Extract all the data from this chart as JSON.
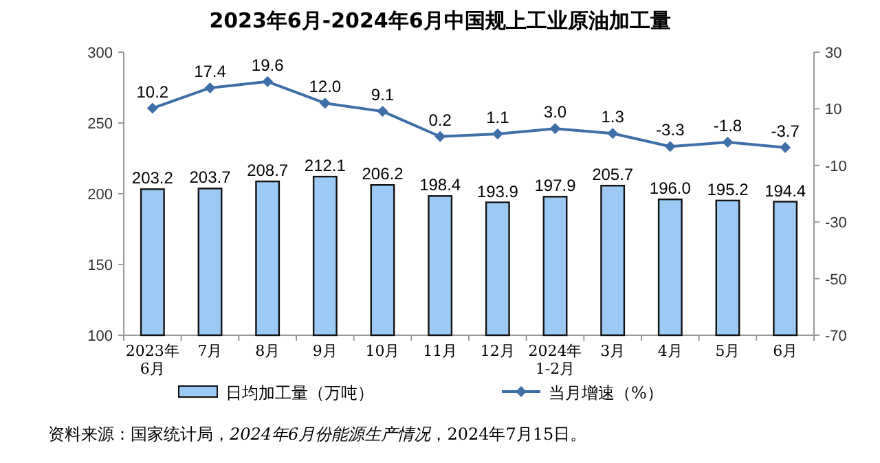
{
  "chart_data": {
    "type": "bar",
    "title": "2023年6月-2024年6月中国规上工业原油加工量",
    "categories": [
      "2023年\n6月",
      "7月",
      "8月",
      "9月",
      "10月",
      "11月",
      "12月",
      "2024年\n1-2月",
      "3月",
      "4月",
      "5月",
      "6月"
    ],
    "series": [
      {
        "name": "日均加工量（万吨）",
        "color": "#9ccaf5",
        "values": [
          203.2,
          203.7,
          208.7,
          212.1,
          206.2,
          198.4,
          193.9,
          197.9,
          205.7,
          196.0,
          195.2,
          194.4
        ],
        "value_labels": [
          "203.2",
          "203.7",
          "208.7",
          "212.1",
          "206.2",
          "198.4",
          "193.9",
          "197.9",
          "205.7",
          "196.0",
          "195.2",
          "194.4"
        ]
      },
      {
        "name": "当月增速（%）",
        "type": "line",
        "axis": "y2",
        "color": "#3e6fa8",
        "marker": "diamond",
        "values": [
          10.2,
          17.4,
          19.6,
          12.0,
          9.1,
          0.2,
          1.1,
          3.0,
          1.3,
          -3.3,
          -1.8,
          -3.7
        ],
        "value_labels": [
          "10.2",
          "17.4",
          "19.6",
          "12.0",
          "9.1",
          "0.2",
          "1.1",
          "3.0",
          "1.3",
          "-3.3",
          "-1.8",
          "-3.7"
        ]
      }
    ],
    "ylim": [
      100,
      300
    ],
    "yticks": [
      100,
      150,
      200,
      250,
      300
    ],
    "y2lim": [
      -70,
      30
    ],
    "y2ticks": [
      -70,
      -50,
      -30,
      -10,
      10,
      30
    ],
    "legend": "bottom",
    "grid": false,
    "annotations": [
      "资料来源：国家统计局，*2024年6月份能源生产情况*，2024年7月15日。"
    ]
  }
}
